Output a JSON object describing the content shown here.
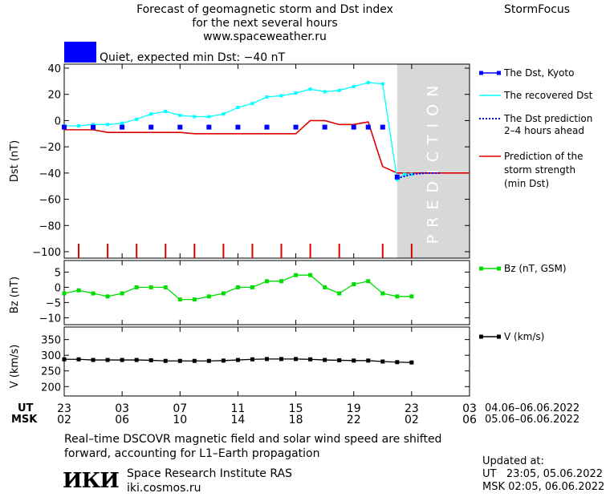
{
  "header": {
    "title_lines": [
      "Forecast of geomagnetic storm and Dst index",
      "for the next several hours",
      "www.spaceweather.ru"
    ],
    "brand": "StormFocus",
    "status_text": "Quiet, expected min Dst: −40 nT",
    "status_color": "#0000ff"
  },
  "legend": {
    "dst_kyoto": "The Dst, Kyoto",
    "dst_recovered": "The recovered Dst",
    "dst_prediction": [
      "The Dst prediction",
      "2–4 hours ahead"
    ],
    "storm_strength": [
      "Prediction of the",
      "storm strength",
      "(min Dst)"
    ],
    "bz": "Bz (nT, GSM)",
    "v": "V (km/s)"
  },
  "footer": {
    "note_lines": [
      "Real–time DSCOVR magnetic field and solar wind speed are shifted",
      "forward, accounting for L1–Earth propagation"
    ],
    "org_logo": "ИКИ",
    "org_name": "Space Research Institute RAS",
    "org_url": "iki.cosmos.ru",
    "updated_label": "Updated at:",
    "updated_ut": "UT   23:05, 05.06.2022",
    "updated_msk": "MSK 02:05, 06.06.2022"
  },
  "chart_data": [
    {
      "type": "line",
      "name": "dst",
      "ylabel": "Dst (nT)",
      "ylim": [
        -100,
        40
      ],
      "yticks": [
        40,
        20,
        0,
        -20,
        -40,
        -60,
        -80,
        -100
      ],
      "xlim": [
        0,
        28
      ],
      "prediction_band": [
        23,
        28
      ],
      "prediction_label": "PREDICTION",
      "storm_markers_x": [
        1,
        3,
        5,
        7,
        9,
        11,
        13,
        15,
        17,
        19,
        22,
        24
      ],
      "series": [
        {
          "name": "The Dst, Kyoto",
          "color": "#0000ff",
          "x": [
            0,
            2,
            4,
            6,
            8,
            10,
            12,
            14,
            16,
            18,
            20,
            21,
            22,
            23
          ],
          "y": [
            -5,
            -5,
            -5,
            -5,
            -5,
            -5,
            -5,
            -5,
            -5,
            -5,
            -5,
            -5,
            -5,
            -43
          ]
        },
        {
          "name": "The recovered Dst",
          "color": "#00ffff",
          "x": [
            0,
            1,
            2,
            3,
            4,
            5,
            6,
            7,
            8,
            9,
            10,
            11,
            12,
            13,
            14,
            15,
            16,
            17,
            18,
            19,
            20,
            21,
            22,
            23,
            23.5,
            24
          ],
          "y": [
            -4,
            -4,
            -3,
            -3,
            -2,
            1,
            5,
            7,
            4,
            3,
            3,
            5,
            10,
            13,
            18,
            19,
            21,
            24,
            22,
            23,
            26,
            29,
            28,
            -45,
            -41,
            -41
          ]
        },
        {
          "name": "The Dst prediction 2–4 hours ahead",
          "color": "#0000ff",
          "x": [
            23,
            24,
            25,
            26
          ],
          "y": [
            -44,
            -41,
            -40,
            -40
          ]
        },
        {
          "name": "Prediction of the storm strength (min Dst)",
          "color": "#dd0000",
          "x": [
            0,
            2,
            3,
            8,
            9,
            16,
            17,
            18,
            19,
            20,
            21,
            21.7,
            22,
            23,
            24,
            26,
            28
          ],
          "y": [
            -7,
            -7,
            -9,
            -9,
            -10,
            -10,
            0,
            0,
            -3,
            -3,
            -1,
            -25,
            -35,
            -40,
            -40,
            -40,
            -40
          ]
        }
      ]
    },
    {
      "type": "line",
      "name": "bz",
      "ylabel": "Bz (nT)",
      "ylim": [
        -12,
        8
      ],
      "yticks": [
        5,
        0,
        -5,
        -10
      ],
      "series": [
        {
          "name": "Bz (nT, GSM)",
          "color": "#00dd00",
          "x": [
            0,
            1,
            2,
            3,
            4,
            5,
            6,
            7,
            8,
            9,
            10,
            11,
            12,
            13,
            14,
            15,
            16,
            17,
            18,
            19,
            20,
            21,
            22,
            23,
            24
          ],
          "y": [
            -2,
            -1,
            -2,
            -3,
            -2,
            0,
            0,
            0,
            -4,
            -4,
            -3,
            -2,
            0,
            0,
            2,
            2,
            4,
            4,
            0,
            -2,
            1,
            2,
            -2,
            -3,
            -3
          ]
        }
      ]
    },
    {
      "type": "line",
      "name": "v",
      "ylabel": "V (km/s)",
      "ylim": [
        170,
        390
      ],
      "yticks": [
        350,
        300,
        250,
        200
      ],
      "series": [
        {
          "name": "V (km/s)",
          "color": "#000000",
          "x": [
            0,
            1,
            2,
            3,
            4,
            5,
            6,
            7,
            8,
            9,
            10,
            11,
            12,
            13,
            14,
            15,
            16,
            17,
            18,
            19,
            20,
            21,
            22,
            23,
            24
          ],
          "y": [
            287,
            287,
            285,
            285,
            285,
            285,
            284,
            282,
            282,
            282,
            282,
            283,
            285,
            287,
            288,
            288,
            288,
            287,
            285,
            284,
            283,
            283,
            280,
            278,
            277
          ]
        }
      ]
    },
    {
      "type": "axis",
      "name": "time_axis",
      "ut_label": "UT",
      "msk_label": "MSK",
      "ut_ticks": [
        "23",
        "03",
        "07",
        "11",
        "15",
        "19",
        "23",
        "03"
      ],
      "msk_ticks": [
        "02",
        "06",
        "10",
        "14",
        "18",
        "22",
        "02",
        "06"
      ],
      "tick_x": [
        0,
        4,
        8,
        12,
        16,
        20,
        24,
        28
      ],
      "ut_range": "04.06–06.06.2022",
      "msk_range": "05.06–06.06.2022"
    }
  ]
}
